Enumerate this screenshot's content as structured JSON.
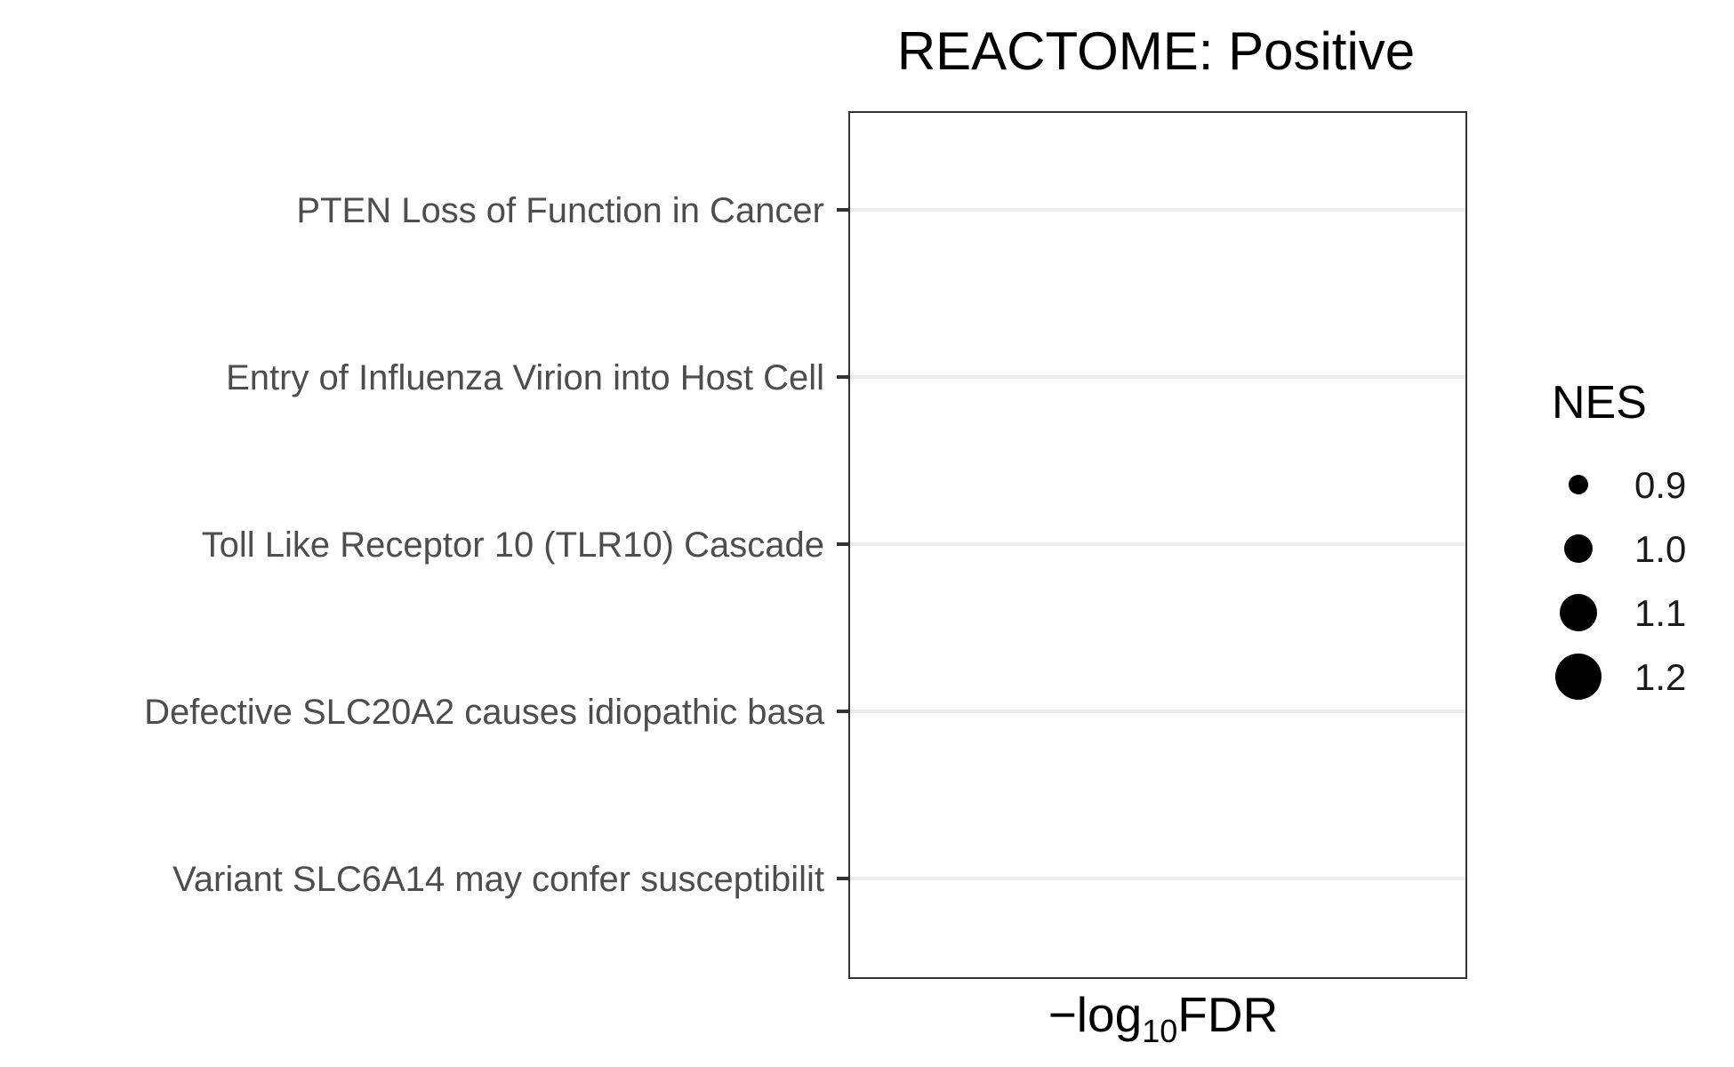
{
  "chart_data": {
    "type": "scatter",
    "title": "REACTOME: Positive",
    "xlabel": "−log",
    "xlabel_subscript": "10",
    "xlabel_suffix": "FDR",
    "ylabel": "",
    "categories": [
      "PTEN Loss of Function in Cancer",
      "Entry of Influenza Virion into Host Cell",
      "Toll Like Receptor 10 (TLR10) Cascade",
      "Defective SLC20A2 causes idiopathic basa",
      "Variant SLC6A14 may confer susceptibilit"
    ],
    "points": [],
    "legend": {
      "title": "NES",
      "placement": "right",
      "entries": [
        {
          "label": "0.9",
          "value": 0.9
        },
        {
          "label": "1.0",
          "value": 1.0
        },
        {
          "label": "1.1",
          "value": 1.1
        },
        {
          "label": "1.2",
          "value": 1.2
        }
      ]
    },
    "grid": "horizontal-major",
    "colors": {
      "panel_border": "#333333",
      "grid": "#ebebeb",
      "point": "#000000",
      "axis_text": "#4d4d4d"
    }
  }
}
